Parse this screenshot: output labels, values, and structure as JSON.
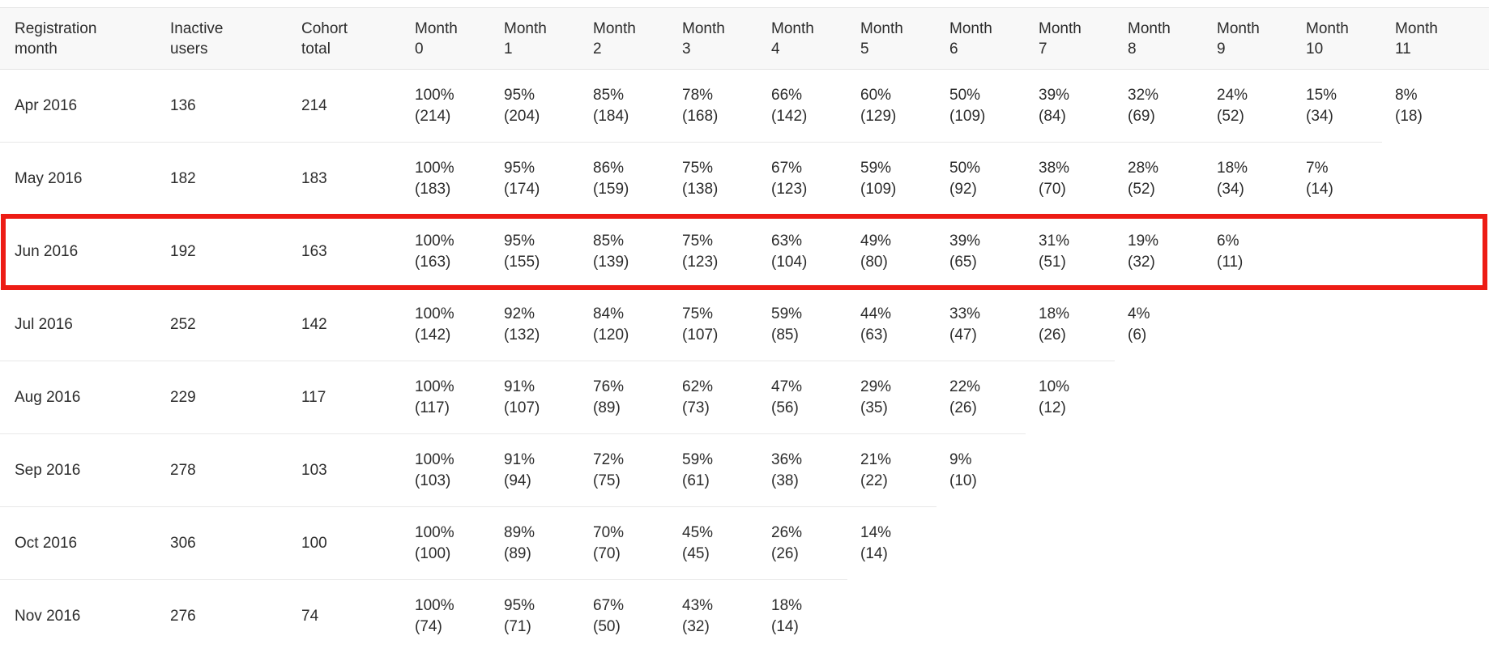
{
  "colors": {
    "highlight_red": "#ed1c15",
    "header_background": "#f8f8f8",
    "separator": "#e8e8e8",
    "text": "#2c2c2c"
  },
  "highlight": {
    "row": "Jun 2016",
    "color": "#ed1c15"
  },
  "table": {
    "columns": [
      {
        "id": "registration-month",
        "label": "Registration\nmonth"
      },
      {
        "id": "inactive-users",
        "label": "Inactive\nusers"
      },
      {
        "id": "cohort-total",
        "label": "Cohort\ntotal"
      },
      {
        "id": "month-0",
        "label": "Month\n0"
      },
      {
        "id": "month-1",
        "label": "Month\n1"
      },
      {
        "id": "month-2",
        "label": "Month\n2"
      },
      {
        "id": "month-3",
        "label": "Month\n3"
      },
      {
        "id": "month-4",
        "label": "Month\n4"
      },
      {
        "id": "month-5",
        "label": "Month\n5"
      },
      {
        "id": "month-6",
        "label": "Month\n6"
      },
      {
        "id": "month-7",
        "label": "Month\n7"
      },
      {
        "id": "month-8",
        "label": "Month\n8"
      },
      {
        "id": "month-9",
        "label": "Month\n9"
      },
      {
        "id": "month-10",
        "label": "Month\n10"
      },
      {
        "id": "month-11",
        "label": "Month\n11"
      }
    ],
    "rows": [
      {
        "registration_month": "Apr 2016",
        "inactive_users": "136",
        "cohort_total": "214",
        "months": [
          {
            "pct": "100%",
            "count": "(214)"
          },
          {
            "pct": "95%",
            "count": "(204)"
          },
          {
            "pct": "85%",
            "count": "(184)"
          },
          {
            "pct": "78%",
            "count": "(168)"
          },
          {
            "pct": "66%",
            "count": "(142)"
          },
          {
            "pct": "60%",
            "count": "(129)"
          },
          {
            "pct": "50%",
            "count": "(109)"
          },
          {
            "pct": "39%",
            "count": "(84)"
          },
          {
            "pct": "32%",
            "count": "(69)"
          },
          {
            "pct": "24%",
            "count": "(52)"
          },
          {
            "pct": "15%",
            "count": "(34)"
          },
          {
            "pct": "8%",
            "count": "(18)"
          }
        ]
      },
      {
        "registration_month": "May 2016",
        "inactive_users": "182",
        "cohort_total": "183",
        "months": [
          {
            "pct": "100%",
            "count": "(183)"
          },
          {
            "pct": "95%",
            "count": "(174)"
          },
          {
            "pct": "86%",
            "count": "(159)"
          },
          {
            "pct": "75%",
            "count": "(138)"
          },
          {
            "pct": "67%",
            "count": "(123)"
          },
          {
            "pct": "59%",
            "count": "(109)"
          },
          {
            "pct": "50%",
            "count": "(92)"
          },
          {
            "pct": "38%",
            "count": "(70)"
          },
          {
            "pct": "28%",
            "count": "(52)"
          },
          {
            "pct": "18%",
            "count": "(34)"
          },
          {
            "pct": "7%",
            "count": "(14)"
          }
        ]
      },
      {
        "registration_month": "Jun 2016",
        "inactive_users": "192",
        "cohort_total": "163",
        "months": [
          {
            "pct": "100%",
            "count": "(163)"
          },
          {
            "pct": "95%",
            "count": "(155)"
          },
          {
            "pct": "85%",
            "count": "(139)"
          },
          {
            "pct": "75%",
            "count": "(123)"
          },
          {
            "pct": "63%",
            "count": "(104)"
          },
          {
            "pct": "49%",
            "count": "(80)"
          },
          {
            "pct": "39%",
            "count": "(65)"
          },
          {
            "pct": "31%",
            "count": "(51)"
          },
          {
            "pct": "19%",
            "count": "(32)"
          },
          {
            "pct": "6%",
            "count": "(11)"
          }
        ]
      },
      {
        "registration_month": "Jul 2016",
        "inactive_users": "252",
        "cohort_total": "142",
        "months": [
          {
            "pct": "100%",
            "count": "(142)"
          },
          {
            "pct": "92%",
            "count": "(132)"
          },
          {
            "pct": "84%",
            "count": "(120)"
          },
          {
            "pct": "75%",
            "count": "(107)"
          },
          {
            "pct": "59%",
            "count": "(85)"
          },
          {
            "pct": "44%",
            "count": "(63)"
          },
          {
            "pct": "33%",
            "count": "(47)"
          },
          {
            "pct": "18%",
            "count": "(26)"
          },
          {
            "pct": "4%",
            "count": "(6)"
          }
        ]
      },
      {
        "registration_month": "Aug 2016",
        "inactive_users": "229",
        "cohort_total": "117",
        "months": [
          {
            "pct": "100%",
            "count": "(117)"
          },
          {
            "pct": "91%",
            "count": "(107)"
          },
          {
            "pct": "76%",
            "count": "(89)"
          },
          {
            "pct": "62%",
            "count": "(73)"
          },
          {
            "pct": "47%",
            "count": "(56)"
          },
          {
            "pct": "29%",
            "count": "(35)"
          },
          {
            "pct": "22%",
            "count": "(26)"
          },
          {
            "pct": "10%",
            "count": "(12)"
          }
        ]
      },
      {
        "registration_month": "Sep 2016",
        "inactive_users": "278",
        "cohort_total": "103",
        "months": [
          {
            "pct": "100%",
            "count": "(103)"
          },
          {
            "pct": "91%",
            "count": "(94)"
          },
          {
            "pct": "72%",
            "count": "(75)"
          },
          {
            "pct": "59%",
            "count": "(61)"
          },
          {
            "pct": "36%",
            "count": "(38)"
          },
          {
            "pct": "21%",
            "count": "(22)"
          },
          {
            "pct": "9%",
            "count": "(10)"
          }
        ]
      },
      {
        "registration_month": "Oct 2016",
        "inactive_users": "306",
        "cohort_total": "100",
        "months": [
          {
            "pct": "100%",
            "count": "(100)"
          },
          {
            "pct": "89%",
            "count": "(89)"
          },
          {
            "pct": "70%",
            "count": "(70)"
          },
          {
            "pct": "45%",
            "count": "(45)"
          },
          {
            "pct": "26%",
            "count": "(26)"
          },
          {
            "pct": "14%",
            "count": "(14)"
          }
        ]
      },
      {
        "registration_month": "Nov 2016",
        "inactive_users": "276",
        "cohort_total": "74",
        "months": [
          {
            "pct": "100%",
            "count": "(74)"
          },
          {
            "pct": "95%",
            "count": "(71)"
          },
          {
            "pct": "67%",
            "count": "(50)"
          },
          {
            "pct": "43%",
            "count": "(32)"
          },
          {
            "pct": "18%",
            "count": "(14)"
          }
        ]
      }
    ]
  }
}
